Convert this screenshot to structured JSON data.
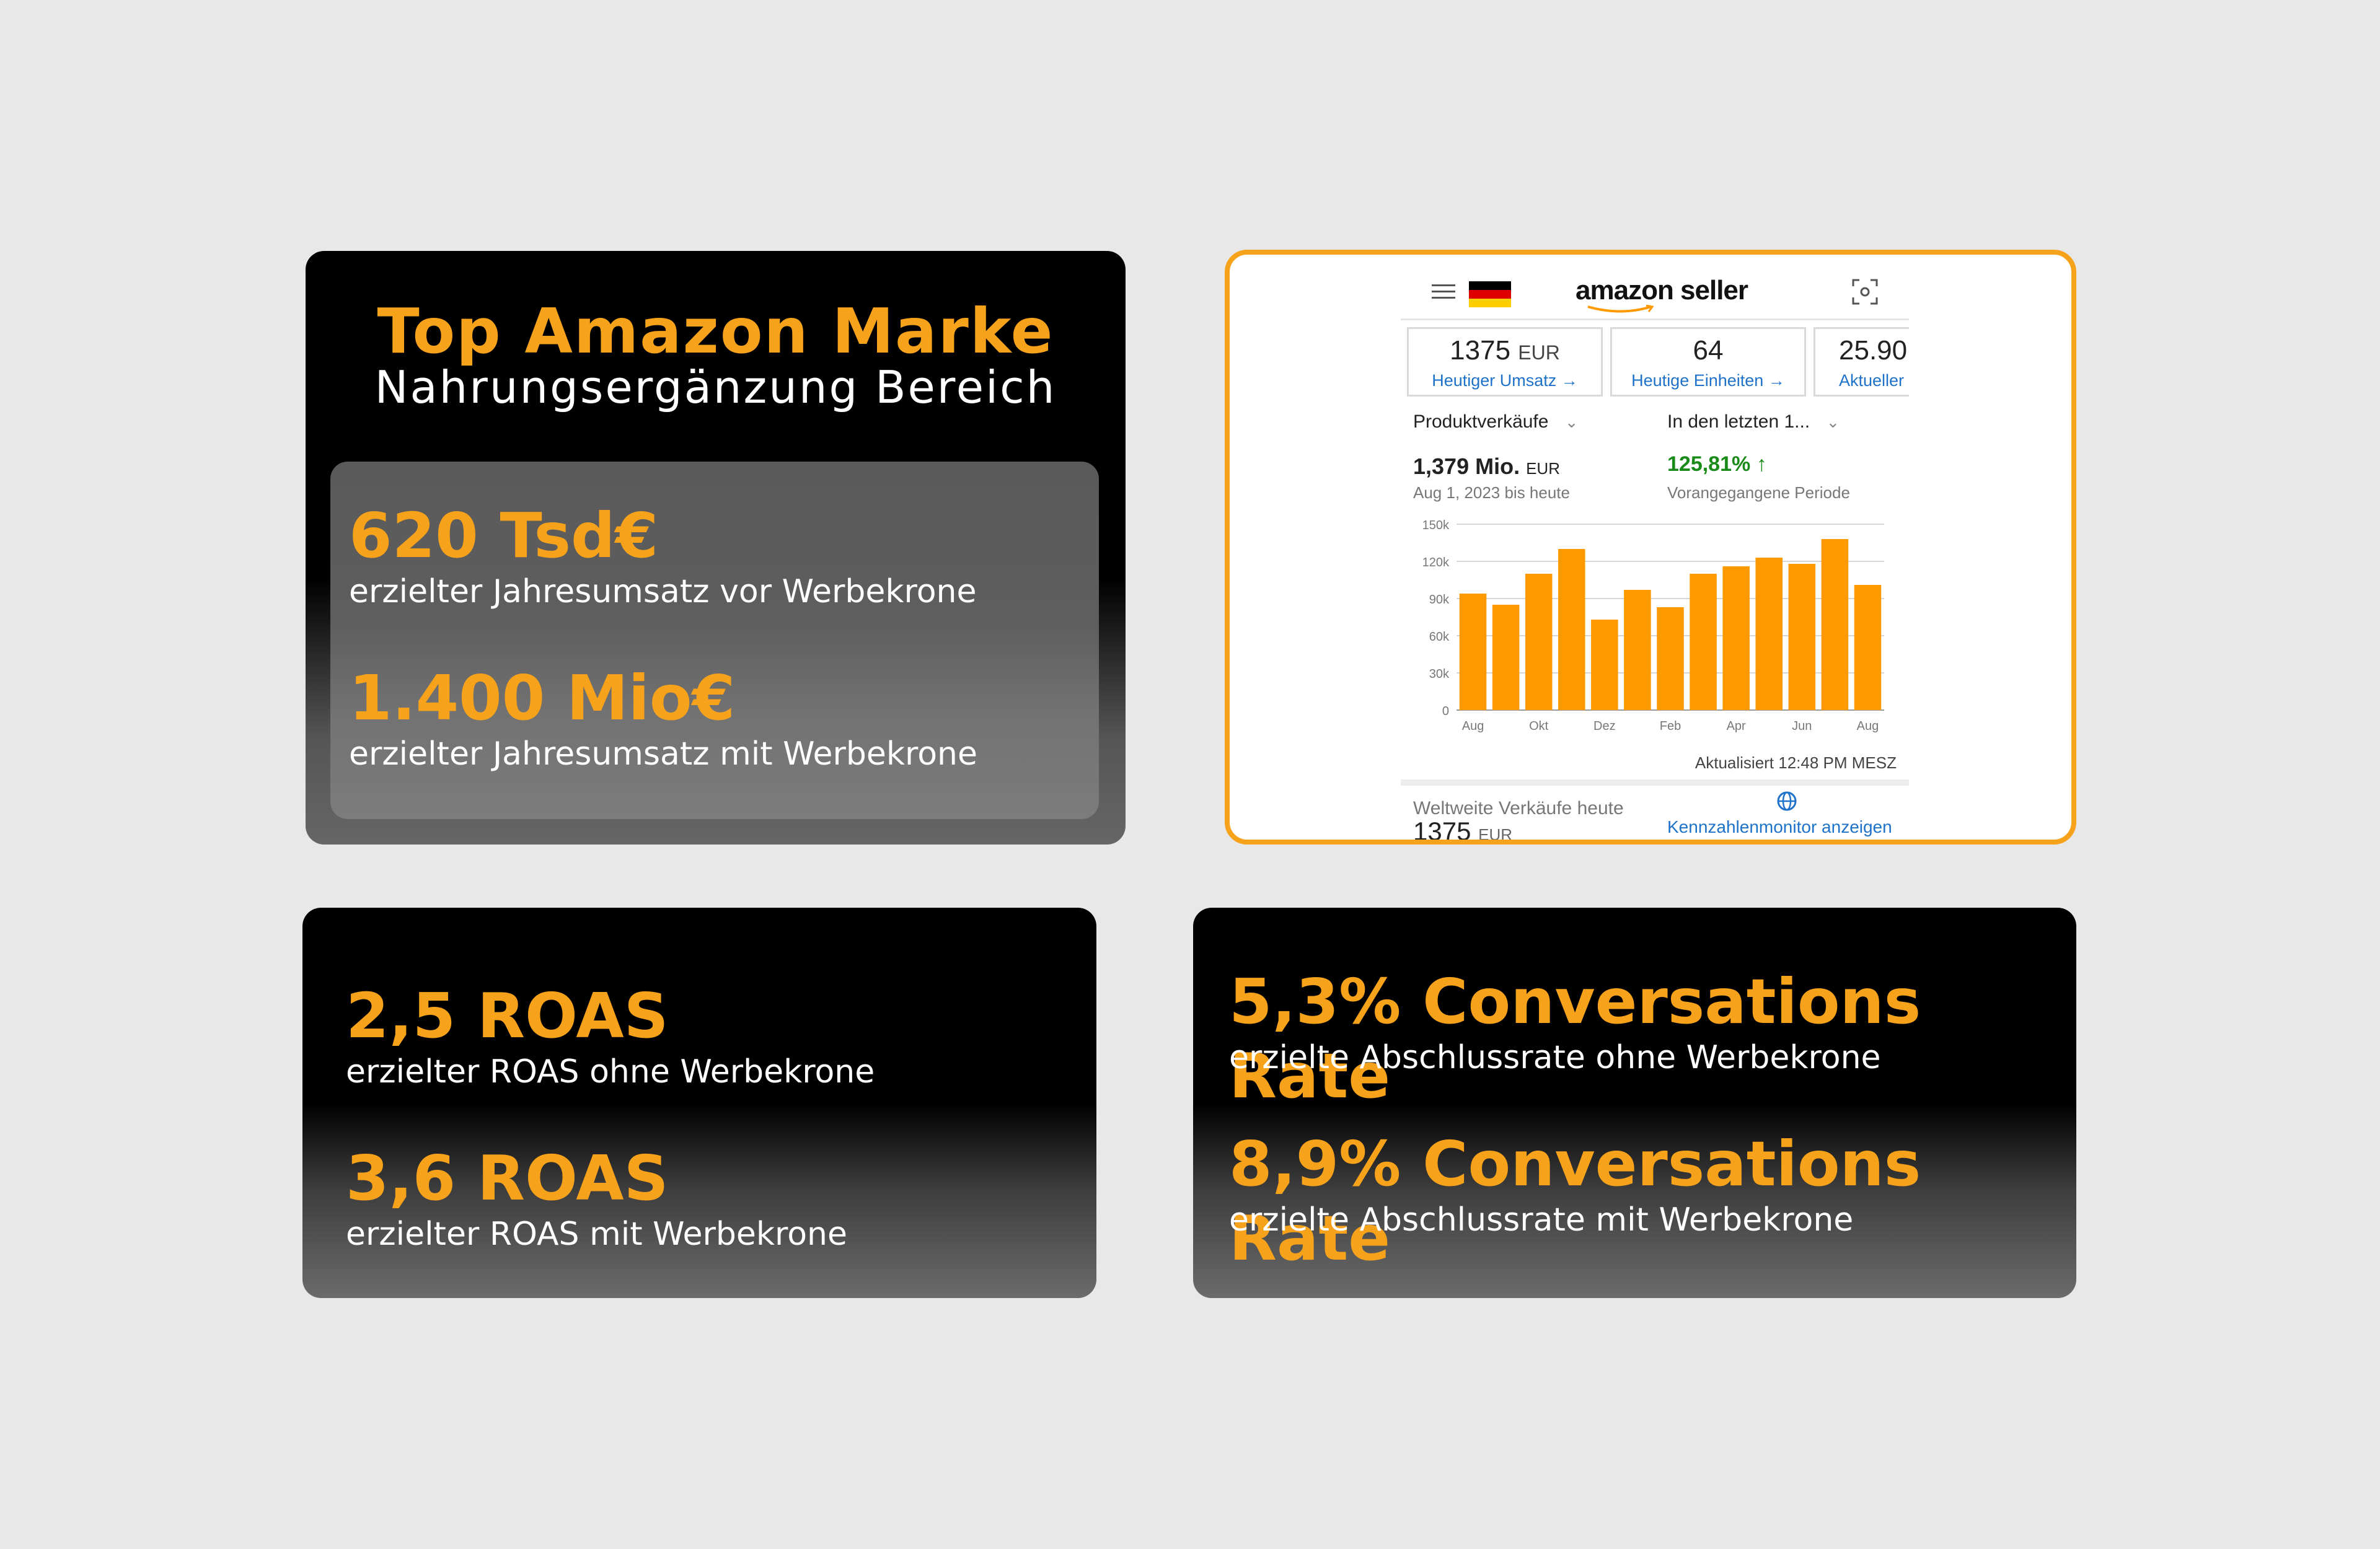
{
  "top_card": {
    "title": "Top Amazon Marke",
    "subtitle": "Nahrungsergänzung Bereich",
    "stat1_value": "620 Tsd€",
    "stat1_label": "erzielter Jahresumsatz vor Werbekrone",
    "stat2_value": "1.400 Mio€",
    "stat2_label": "erzielter Jahresumsatz mit Werbekrone"
  },
  "seller_app": {
    "logo_text": "amazon seller",
    "kpis": [
      {
        "value": "1375",
        "unit": "EUR",
        "link": "Heutiger Umsatz"
      },
      {
        "value": "64",
        "unit": "",
        "link": "Heutige Einheiten"
      },
      {
        "value": "25.90",
        "unit": "",
        "link": "Aktueller"
      }
    ],
    "dropdown_left": "Produktverkäufe",
    "dropdown_right": "In den letzten 1...",
    "total_value": "1,379 Mio.",
    "total_unit": "EUR",
    "total_period": "Aug 1, 2023 bis heute",
    "growth_value": "125,81%",
    "growth_label": "Vorangegangene Periode",
    "updated": "Aktualisiert 12:48 PM MESZ",
    "worldwide_label": "Weltweite Verkäufe heute",
    "worldwide_value": "1375",
    "worldwide_unit": "EUR",
    "monitor_link": "Kennzahlenmonitor anzeigen",
    "colors": {
      "bar": "#ff9900",
      "link": "#1f72c9",
      "growth": "#1a8a1a"
    }
  },
  "chart_data": {
    "type": "bar",
    "categories": [
      "Aug",
      "Sep",
      "Okt",
      "Nov",
      "Dez",
      "Jan",
      "Feb",
      "Mär",
      "Apr",
      "Mai",
      "Jun",
      "Jul",
      "Aug"
    ],
    "x_tick_labels": [
      "Aug",
      "Okt",
      "Dez",
      "Feb",
      "Apr",
      "Jun",
      "Aug"
    ],
    "values": [
      94000,
      85000,
      110000,
      130000,
      73000,
      97000,
      83000,
      110000,
      116000,
      123000,
      118000,
      138000,
      101000
    ],
    "y_ticks": [
      "0",
      "30k",
      "60k",
      "90k",
      "120k",
      "150k"
    ],
    "ylim": [
      0,
      150000
    ],
    "grid": true
  },
  "roas_card": {
    "stat1_value": "2,5 ROAS",
    "stat1_label": "erzielter ROAS ohne Werbekrone",
    "stat2_value": "3,6 ROAS",
    "stat2_label": "erzielter ROAS mit Werbekrone"
  },
  "conv_card": {
    "stat1_value": "5,3% Conversations Rate",
    "stat1_label": "erzielte Abschlussrate ohne Werbekrone",
    "stat2_value": "8,9% Conversations Rate",
    "stat2_label": "erzielte Abschlussrate mit Werbekrone"
  }
}
